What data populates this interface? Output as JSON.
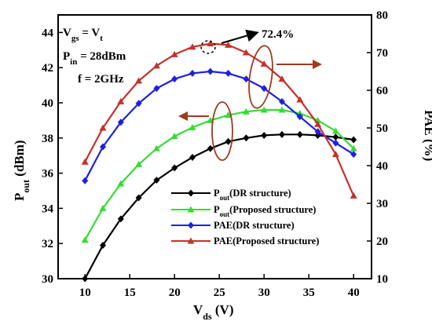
{
  "chart_data": {
    "type": "line",
    "x": [
      10,
      12,
      14,
      16,
      18,
      20,
      22,
      24,
      26,
      28,
      30,
      32,
      34,
      36,
      38,
      40
    ],
    "xlim": [
      7,
      42
    ],
    "xticks": [
      10,
      15,
      20,
      25,
      30,
      35,
      40
    ],
    "xlabel": {
      "main": "V",
      "sub": "ds",
      "rest": " (V)"
    },
    "ylim_left": [
      30,
      45
    ],
    "yticks_left": [
      30,
      32,
      34,
      36,
      38,
      40,
      42,
      44
    ],
    "ylabel_left": {
      "main": "P",
      "sub": "out",
      "rest": " (dBm)"
    },
    "ylim_right": [
      10,
      80
    ],
    "yticks_right": [
      10,
      20,
      30,
      40,
      50,
      60,
      70,
      80
    ],
    "ylabel_right": "PAE (%)",
    "series": [
      {
        "name": "P",
        "name_sub": "out",
        "name_rest": "(DR structure)",
        "axis": "left",
        "color": "#000000",
        "marker": "diamond",
        "values": [
          30.0,
          31.9,
          33.4,
          34.6,
          35.6,
          36.3,
          36.9,
          37.4,
          37.8,
          38.0,
          38.15,
          38.2,
          38.2,
          38.15,
          38.05,
          37.9
        ]
      },
      {
        "name": "P",
        "name_sub": "out",
        "name_rest": "(Proposed structure)",
        "axis": "left",
        "color": "#33dd33",
        "marker": "triangle",
        "values": [
          32.2,
          34.0,
          35.4,
          36.5,
          37.4,
          38.1,
          38.6,
          39.0,
          39.3,
          39.5,
          39.6,
          39.6,
          39.4,
          39.0,
          38.4,
          37.4
        ]
      },
      {
        "name": "PAE(DR structure)",
        "axis": "right",
        "color": "#1f1fe6",
        "marker": "diamond",
        "values": [
          36.0,
          45.0,
          51.5,
          56.5,
          60.5,
          63.0,
          64.5,
          65.0,
          64.5,
          63.0,
          60.5,
          57.0,
          53.0,
          49.0,
          46.0,
          43.0
        ]
      },
      {
        "name": "PAE(Proposed structure)",
        "axis": "right",
        "color": "#c8302a",
        "marker": "triangle",
        "values": [
          41.0,
          50.0,
          57.0,
          62.5,
          66.5,
          69.5,
          71.5,
          72.4,
          72.0,
          70.0,
          67.0,
          63.0,
          57.5,
          51.0,
          43.0,
          32.0
        ]
      }
    ],
    "annotations": {
      "vgs": {
        "main": "V",
        "sub": "gs",
        "eq": " = V",
        "sub2": "t"
      },
      "pin": {
        "main": "P",
        "sub": "in",
        "rest": " = 28dBm"
      },
      "freq": "f = 2GHz",
      "peak": "72.4%"
    },
    "grid": false,
    "legend_position": "center-right"
  }
}
